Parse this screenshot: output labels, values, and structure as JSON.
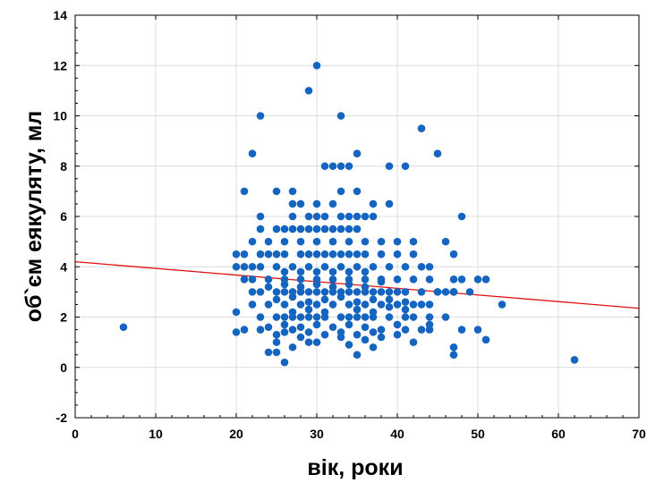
{
  "chart_data": {
    "type": "scatter",
    "xlabel": "вік, роки",
    "ylabel": "об`єм еякуляту, мл",
    "xlim": [
      0,
      70
    ],
    "ylim": [
      -2,
      14
    ],
    "x_ticks": [
      "0",
      "10",
      "20",
      "30",
      "40",
      "50",
      "60",
      "70"
    ],
    "y_ticks": [
      "-2",
      "0",
      "2",
      "4",
      "6",
      "8",
      "10",
      "12",
      "14"
    ],
    "grid": true,
    "point_color": "#1565c0",
    "regression_line": {
      "x": [
        0,
        70
      ],
      "y": [
        4.2,
        2.35
      ],
      "color": "#e01010"
    },
    "points": [
      [
        6,
        1.6
      ],
      [
        62,
        0.3
      ],
      [
        26,
        0.2
      ],
      [
        35,
        0.5
      ],
      [
        47,
        0.5
      ],
      [
        47,
        0.8
      ],
      [
        34,
        0.9
      ],
      [
        37,
        0.8
      ],
      [
        24,
        0.6
      ],
      [
        25,
        0.6
      ],
      [
        27,
        0.8
      ],
      [
        29,
        1.0
      ],
      [
        30,
        1.0
      ],
      [
        31,
        1.3
      ],
      [
        25,
        1.0
      ],
      [
        20,
        1.4
      ],
      [
        20,
        2.2
      ],
      [
        21,
        1.5
      ],
      [
        23,
        1.5
      ],
      [
        26,
        1.4
      ],
      [
        28,
        1.2
      ],
      [
        33,
        1.2
      ],
      [
        36,
        1.1
      ],
      [
        38,
        1.2
      ],
      [
        40,
        1.3
      ],
      [
        42,
        1.0
      ],
      [
        44,
        1.5
      ],
      [
        46,
        2.0
      ],
      [
        48,
        1.5
      ],
      [
        50,
        1.5
      ],
      [
        51,
        1.1
      ],
      [
        53,
        2.5
      ],
      [
        49,
        3.0
      ],
      [
        50,
        3.5
      ],
      [
        51,
        3.5
      ],
      [
        48,
        3.5
      ],
      [
        47,
        3.5
      ],
      [
        47,
        3.0
      ],
      [
        47,
        4.5
      ],
      [
        46,
        5.0
      ],
      [
        45,
        3.0
      ],
      [
        46,
        3.0
      ],
      [
        44,
        2.5
      ],
      [
        43,
        3.0
      ],
      [
        42,
        3.5
      ],
      [
        42,
        2.0
      ],
      [
        43,
        1.5
      ],
      [
        20,
        4.0
      ],
      [
        20,
        4.5
      ],
      [
        21,
        4.5
      ],
      [
        21,
        3.5
      ],
      [
        22,
        3.0
      ],
      [
        22,
        2.5
      ],
      [
        22,
        5.0
      ],
      [
        23,
        5.5
      ],
      [
        21,
        7.0
      ],
      [
        22,
        8.5
      ],
      [
        23,
        10.0
      ],
      [
        23,
        6.0
      ],
      [
        25,
        7.0
      ],
      [
        27,
        7.0
      ],
      [
        27,
        6.5
      ],
      [
        28,
        6.5
      ],
      [
        29,
        6.0
      ],
      [
        30,
        6.5
      ],
      [
        29,
        11.0
      ],
      [
        30,
        12.0
      ],
      [
        33,
        10.0
      ],
      [
        31,
        8.0
      ],
      [
        32,
        8.0
      ],
      [
        33,
        8.0
      ],
      [
        34,
        8.0
      ],
      [
        35,
        8.5
      ],
      [
        33,
        7.0
      ],
      [
        35,
        7.0
      ],
      [
        37,
        6.5
      ],
      [
        39,
        6.5
      ],
      [
        39,
        8.0
      ],
      [
        41,
        8.0
      ],
      [
        43,
        9.5
      ],
      [
        45,
        8.5
      ],
      [
        48,
        6.0
      ],
      [
        26,
        5.5
      ],
      [
        28,
        5.5
      ],
      [
        30,
        5.5
      ],
      [
        32,
        5.5
      ],
      [
        34,
        5.5
      ],
      [
        36,
        5.0
      ],
      [
        38,
        5.0
      ],
      [
        40,
        5.0
      ],
      [
        42,
        5.0
      ],
      [
        24,
        5.0
      ],
      [
        26,
        5.0
      ],
      [
        28,
        5.0
      ],
      [
        30,
        5.0
      ],
      [
        32,
        5.0
      ],
      [
        34,
        5.0
      ],
      [
        31,
        6.0
      ],
      [
        33,
        6.0
      ],
      [
        35,
        6.0
      ],
      [
        37,
        6.0
      ],
      [
        32,
        6.5
      ],
      [
        24,
        4.5
      ],
      [
        26,
        4.5
      ],
      [
        28,
        4.5
      ],
      [
        30,
        4.5
      ],
      [
        32,
        4.5
      ],
      [
        34,
        4.5
      ],
      [
        36,
        4.5
      ],
      [
        38,
        4.5
      ],
      [
        40,
        4.5
      ],
      [
        42,
        4.5
      ],
      [
        23,
        4.0
      ],
      [
        25,
        4.0
      ],
      [
        27,
        4.0
      ],
      [
        29,
        4.0
      ],
      [
        31,
        4.0
      ],
      [
        33,
        4.0
      ],
      [
        35,
        4.0
      ],
      [
        37,
        4.0
      ],
      [
        39,
        4.0
      ],
      [
        41,
        4.0
      ],
      [
        43,
        4.0
      ],
      [
        22,
        3.5
      ],
      [
        24,
        3.5
      ],
      [
        26,
        3.5
      ],
      [
        28,
        3.5
      ],
      [
        30,
        3.5
      ],
      [
        32,
        3.5
      ],
      [
        34,
        3.5
      ],
      [
        36,
        3.5
      ],
      [
        38,
        3.5
      ],
      [
        40,
        3.5
      ],
      [
        23,
        3.0
      ],
      [
        25,
        3.0
      ],
      [
        27,
        3.0
      ],
      [
        29,
        3.0
      ],
      [
        31,
        3.0
      ],
      [
        33,
        3.0
      ],
      [
        35,
        3.0
      ],
      [
        37,
        3.0
      ],
      [
        39,
        3.0
      ],
      [
        41,
        3.0
      ],
      [
        24,
        2.5
      ],
      [
        26,
        2.5
      ],
      [
        28,
        2.5
      ],
      [
        30,
        2.5
      ],
      [
        32,
        2.5
      ],
      [
        34,
        2.5
      ],
      [
        36,
        2.5
      ],
      [
        38,
        2.5
      ],
      [
        40,
        2.5
      ],
      [
        23,
        2.0
      ],
      [
        25,
        2.0
      ],
      [
        27,
        2.0
      ],
      [
        29,
        2.0
      ],
      [
        31,
        2.0
      ],
      [
        33,
        2.0
      ],
      [
        35,
        2.0
      ],
      [
        37,
        2.0
      ],
      [
        39,
        2.0
      ],
      [
        41,
        2.0
      ],
      [
        24,
        1.6
      ],
      [
        26,
        1.7
      ],
      [
        28,
        1.6
      ],
      [
        30,
        1.7
      ],
      [
        32,
        1.6
      ],
      [
        34,
        1.7
      ],
      [
        36,
        1.6
      ],
      [
        38,
        1.5
      ],
      [
        40,
        1.7
      ],
      [
        44,
        1.7
      ],
      [
        27,
        2.2
      ],
      [
        29,
        2.3
      ],
      [
        31,
        2.2
      ],
      [
        35,
        2.3
      ],
      [
        37,
        2.2
      ],
      [
        39,
        2.4
      ],
      [
        41,
        2.3
      ],
      [
        25,
        2.7
      ],
      [
        27,
        2.8
      ],
      [
        29,
        2.6
      ],
      [
        31,
        2.7
      ],
      [
        33,
        2.8
      ],
      [
        35,
        2.6
      ],
      [
        37,
        2.7
      ],
      [
        39,
        2.7
      ],
      [
        41,
        2.6
      ],
      [
        24,
        3.2
      ],
      [
        26,
        3.3
      ],
      [
        28,
        3.2
      ],
      [
        30,
        3.3
      ],
      [
        32,
        3.2
      ],
      [
        34,
        3.3
      ],
      [
        36,
        3.2
      ],
      [
        38,
        3.4
      ],
      [
        26,
        3.8
      ],
      [
        28,
        3.8
      ],
      [
        30,
        3.8
      ],
      [
        32,
        3.8
      ],
      [
        34,
        3.8
      ],
      [
        36,
        3.8
      ],
      [
        25,
        1.3
      ],
      [
        27,
        1.5
      ],
      [
        29,
        1.4
      ],
      [
        35,
        1.3
      ],
      [
        37,
        1.4
      ],
      [
        33,
        1.4
      ],
      [
        41,
        1.5
      ],
      [
        30,
        2.0
      ],
      [
        34,
        2.0
      ],
      [
        36,
        2.0
      ],
      [
        28,
        2.0
      ],
      [
        26,
        2.0
      ],
      [
        38,
        3.0
      ],
      [
        40,
        3.0
      ],
      [
        42,
        2.5
      ],
      [
        43,
        2.5
      ],
      [
        44,
        2.0
      ],
      [
        28,
        3.0
      ],
      [
        30,
        3.0
      ],
      [
        32,
        3.0
      ],
      [
        34,
        3.0
      ],
      [
        36,
        3.0
      ],
      [
        26,
        3.0
      ],
      [
        29,
        4.5
      ],
      [
        31,
        4.5
      ],
      [
        33,
        4.5
      ],
      [
        35,
        4.5
      ],
      [
        25,
        5.5
      ],
      [
        27,
        5.5
      ],
      [
        29,
        5.5
      ],
      [
        31,
        5.5
      ],
      [
        33,
        5.5
      ],
      [
        35,
        5.5
      ],
      [
        30,
        6.0
      ],
      [
        34,
        6.0
      ],
      [
        36,
        6.0
      ],
      [
        27,
        6.0
      ],
      [
        25,
        4.5
      ],
      [
        23,
        4.5
      ],
      [
        22,
        4.0
      ],
      [
        21,
        4.0
      ],
      [
        44,
        3.5
      ],
      [
        44,
        4.0
      ],
      [
        45,
        3.0
      ],
      [
        47,
        3.0
      ]
    ]
  }
}
